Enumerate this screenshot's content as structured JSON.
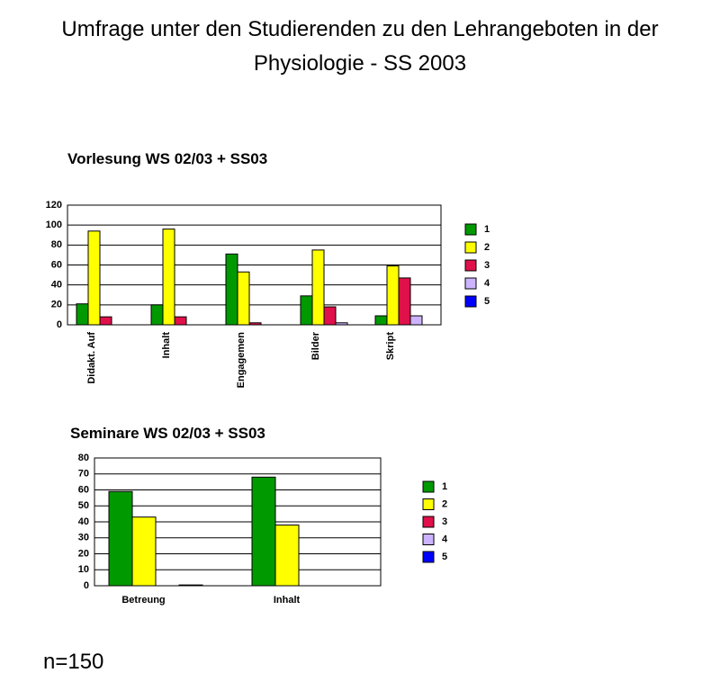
{
  "title": "Umfrage unter den Studierenden zu den Lehrangeboten in der Physiologie - SS 2003",
  "note": "n=150",
  "chart_data": [
    {
      "type": "bar",
      "title": "Vorlesung WS 02/03 + SS03",
      "categories": [
        "Didakt. Auf",
        "Inhalt",
        "Engagemen",
        "Bilder",
        "Skript"
      ],
      "series": [
        {
          "name": "1",
          "color": "#009900",
          "values": [
            21,
            20,
            71,
            29,
            9
          ]
        },
        {
          "name": "2",
          "color": "#ffff00",
          "values": [
            94,
            96,
            53,
            75,
            59
          ]
        },
        {
          "name": "3",
          "color": "#e0104a",
          "values": [
            8,
            8,
            2,
            18,
            47
          ]
        },
        {
          "name": "4",
          "color": "#ccb3ff",
          "values": [
            0,
            0,
            0,
            2,
            9
          ]
        },
        {
          "name": "5",
          "color": "#0000ff",
          "values": [
            0,
            0,
            0,
            0,
            0
          ]
        }
      ],
      "ylim": [
        0,
        120
      ],
      "yticks": [
        0,
        20,
        40,
        60,
        80,
        100,
        120
      ],
      "grid": true,
      "legend": "right"
    },
    {
      "type": "bar",
      "title": "Seminare WS 02/03 + SS03",
      "categories": [
        "Betreung",
        "Inhalt"
      ],
      "series": [
        {
          "name": "1",
          "color": "#009900",
          "values": [
            59,
            68
          ]
        },
        {
          "name": "2",
          "color": "#ffff00",
          "values": [
            43,
            38
          ]
        },
        {
          "name": "3",
          "color": "#e0104a",
          "values": [
            0,
            0
          ]
        },
        {
          "name": "4",
          "color": "#ccb3ff",
          "values": [
            0.5,
            0
          ]
        },
        {
          "name": "5",
          "color": "#0000ff",
          "values": [
            0,
            0
          ]
        }
      ],
      "ylim": [
        0,
        80
      ],
      "yticks": [
        0,
        10,
        20,
        30,
        40,
        50,
        60,
        70,
        80
      ],
      "grid": true,
      "legend": "right"
    }
  ]
}
